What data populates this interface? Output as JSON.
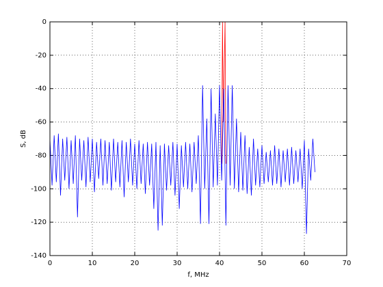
{
  "chart_data": {
    "type": "line",
    "xlabel": "f, MHz",
    "ylabel": "S, dB",
    "xlim": [
      0,
      70
    ],
    "ylim": [
      -140,
      0
    ],
    "xticks": [
      0,
      10,
      20,
      30,
      40,
      50,
      60,
      70
    ],
    "yticks": [
      -140,
      -120,
      -100,
      -80,
      -60,
      -40,
      -20,
      0
    ],
    "grid": true,
    "series": [
      {
        "color": "#ff0000",
        "x": [
          40.5,
          40.7,
          40.9,
          41.3,
          41.5
        ],
        "values": [
          -85,
          0,
          -60,
          0,
          -85
        ]
      },
      {
        "color": "#0000ff",
        "x": [
          0,
          0.5,
          1,
          1.5,
          2,
          2.5,
          3,
          3.5,
          4,
          4.5,
          5,
          5.5,
          6,
          6.5,
          7,
          7.5,
          8,
          8.5,
          9,
          9.5,
          10,
          10.5,
          11,
          11.5,
          12,
          12.5,
          13,
          13.5,
          14,
          14.5,
          15,
          15.5,
          16,
          16.5,
          17,
          17.5,
          18,
          18.5,
          19,
          19.5,
          20,
          20.5,
          21,
          21.5,
          22,
          22.5,
          23,
          23.5,
          24,
          24.5,
          25,
          25.5,
          26,
          26.5,
          27,
          27.5,
          28,
          28.5,
          29,
          29.5,
          30,
          30.5,
          31,
          31.5,
          32,
          32.5,
          33,
          33.5,
          34,
          34.5,
          35,
          35.5,
          36,
          36.5,
          37,
          37.5,
          38,
          38.5,
          39,
          39.5,
          40,
          40.5,
          41,
          41.5,
          42,
          42.5,
          43,
          43.5,
          44,
          44.5,
          45,
          45.5,
          46,
          46.5,
          47,
          47.5,
          48,
          48.5,
          49,
          49.5,
          50,
          50.5,
          51,
          51.5,
          52,
          52.5,
          53,
          53.5,
          54,
          54.5,
          55,
          55.5,
          56,
          56.5,
          57,
          57.5,
          58,
          58.5,
          59,
          59.5,
          60,
          60.5,
          61,
          61.5,
          62,
          62.5
        ],
        "values": [
          -70,
          -98,
          -68,
          -96,
          -67,
          -104,
          -70,
          -95,
          -69,
          -100,
          -71,
          -97,
          -68,
          -117,
          -70,
          -95,
          -71,
          -99,
          -69,
          -96,
          -70,
          -102,
          -72,
          -94,
          -70,
          -98,
          -71,
          -97,
          -72,
          -101,
          -70,
          -96,
          -72,
          -99,
          -71,
          -105,
          -72,
          -96,
          -70,
          -98,
          -73,
          -100,
          -71,
          -97,
          -73,
          -103,
          -72,
          -98,
          -73,
          -112,
          -72,
          -125,
          -74,
          -122,
          -73,
          -101,
          -74,
          -98,
          -72,
          -104,
          -73,
          -112,
          -74,
          -99,
          -72,
          -100,
          -73,
          -102,
          -72,
          -97,
          -68,
          -121,
          -38,
          -100,
          -58,
          -121,
          -40,
          -99,
          -55,
          -98,
          -38,
          -95,
          -40,
          -122,
          -38,
          -98,
          -38,
          -100,
          -58,
          -102,
          -66,
          -101,
          -68,
          -103,
          -75,
          -104,
          -70,
          -98,
          -76,
          -99,
          -74,
          -97,
          -78,
          -96,
          -77,
          -98,
          -74,
          -97,
          -76,
          -99,
          -77,
          -96,
          -76,
          -98,
          -75,
          -97,
          -77,
          -96,
          -76,
          -100,
          -71,
          -127,
          -76,
          -95,
          -70,
          -90
        ]
      }
    ]
  }
}
